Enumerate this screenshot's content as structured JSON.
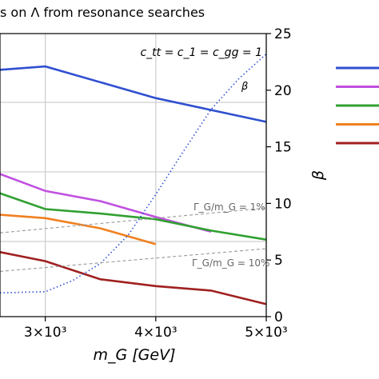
{
  "chart_data": {
    "type": "line",
    "title": "s on Λ from resonance searches",
    "xlabel": "m_G [GeV]",
    "ylabel_right": "β",
    "xlim": [
      2590,
      5000
    ],
    "ylim_right": [
      0,
      25
    ],
    "x_ticks": [
      {
        "value": 3000,
        "label": "3×10³"
      },
      {
        "value": 4000,
        "label": "4×10³"
      },
      {
        "value": 5000,
        "label": "5×10³"
      }
    ],
    "right_ticks": [
      0,
      5,
      10,
      15,
      20,
      25
    ],
    "grid": true,
    "series": [
      {
        "color": "#3050d0",
        "style": "solid",
        "points": [
          [
            2590,
            21.8
          ],
          [
            3000,
            22.1
          ],
          [
            4000,
            19.3
          ],
          [
            5000,
            17.2
          ]
        ]
      },
      {
        "color": "#c050e0",
        "style": "solid",
        "points": [
          [
            2590,
            12.6
          ],
          [
            3000,
            11.1
          ],
          [
            3500,
            10.2
          ],
          [
            4000,
            8.8
          ],
          [
            4500,
            7.5
          ]
        ]
      },
      {
        "color": "#30a030",
        "style": "solid",
        "points": [
          [
            2590,
            10.9
          ],
          [
            3000,
            9.5
          ],
          [
            3500,
            9.1
          ],
          [
            4000,
            8.6
          ],
          [
            4500,
            7.6
          ],
          [
            5000,
            6.8
          ]
        ]
      },
      {
        "color": "#f08020",
        "style": "solid",
        "points": [
          [
            2590,
            9.0
          ],
          [
            3000,
            8.7
          ],
          [
            3500,
            7.8
          ],
          [
            4000,
            6.4
          ]
        ]
      },
      {
        "color": "#a02020",
        "style": "solid",
        "points": [
          [
            2590,
            5.7
          ],
          [
            3000,
            4.9
          ],
          [
            3500,
            3.3
          ],
          [
            4000,
            2.7
          ],
          [
            4500,
            2.3
          ],
          [
            5000,
            1.1
          ]
        ]
      },
      {
        "name": "β",
        "color": "#3050d0",
        "style": "dotted",
        "points": [
          [
            2590,
            2.1
          ],
          [
            3000,
            2.2
          ],
          [
            3250,
            3.2
          ],
          [
            3500,
            4.7
          ],
          [
            3750,
            7.2
          ],
          [
            4000,
            10.8
          ],
          [
            4250,
            14.6
          ],
          [
            4500,
            18.3
          ],
          [
            4750,
            21.0
          ],
          [
            5000,
            23.2
          ]
        ]
      },
      {
        "name": "Γ_G/m_G = 1%",
        "color": "#999999",
        "style": "dashed",
        "points": [
          [
            2590,
            7.4
          ],
          [
            5000,
            9.6
          ]
        ]
      },
      {
        "name": "Γ_G/m_G = 10%",
        "color": "#999999",
        "style": "dashed",
        "points": [
          [
            2590,
            4.0
          ],
          [
            5000,
            6.0
          ]
        ]
      }
    ],
    "annotations": [
      {
        "text": "c_tt = c_1 = c_gg = 1"
      },
      {
        "text": "β"
      },
      {
        "text": "Γ_G/m_G = 1%"
      },
      {
        "text": "Γ_G/m_G = 10%"
      }
    ],
    "legend": {
      "placement": "right-outside",
      "colors": [
        "#3050d0",
        "#c050e0",
        "#30a030",
        "#f08020",
        "#a02020"
      ]
    }
  }
}
